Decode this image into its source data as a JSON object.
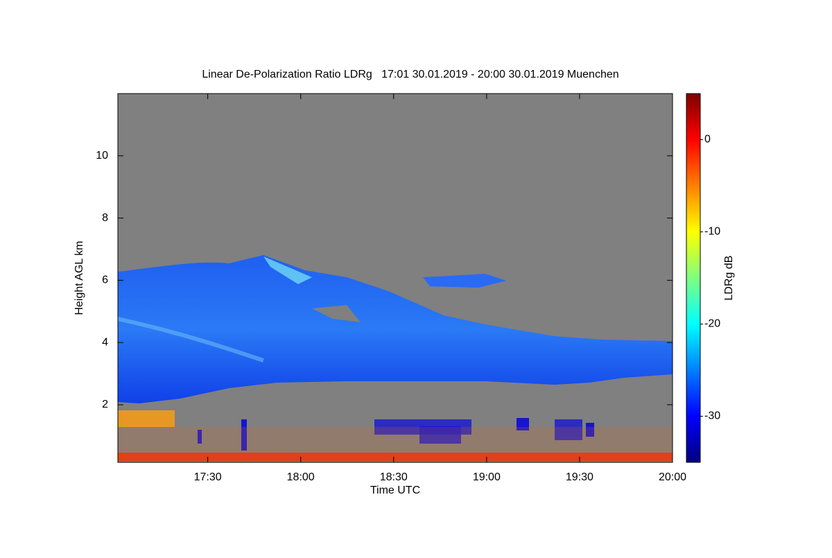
{
  "chart_data": {
    "type": "heatmap",
    "title": "Linear De-Polarization Ratio LDRg   17:01 30.01.2019 - 20:00 30.01.2019 Muenchen",
    "x_label": "Time UTC",
    "y_label": "Height AGL km",
    "xlim": [
      1021,
      1200
    ],
    "xticks": [
      {
        "value": 1050,
        "label": "17:30"
      },
      {
        "value": 1080,
        "label": "18:00"
      },
      {
        "value": 1110,
        "label": "18:30"
      },
      {
        "value": 1140,
        "label": "19:00"
      },
      {
        "value": 1170,
        "label": "19:30"
      },
      {
        "value": 1200,
        "label": "20:00"
      }
    ],
    "ylim": [
      0.15,
      12
    ],
    "yticks": [
      2,
      4,
      6,
      8,
      10
    ],
    "colorbar": {
      "label": "LDRg dB",
      "lim": [
        -35,
        5
      ],
      "ticks": [
        0,
        -10,
        -20,
        -30
      ],
      "colormap": "jet"
    }
  }
}
